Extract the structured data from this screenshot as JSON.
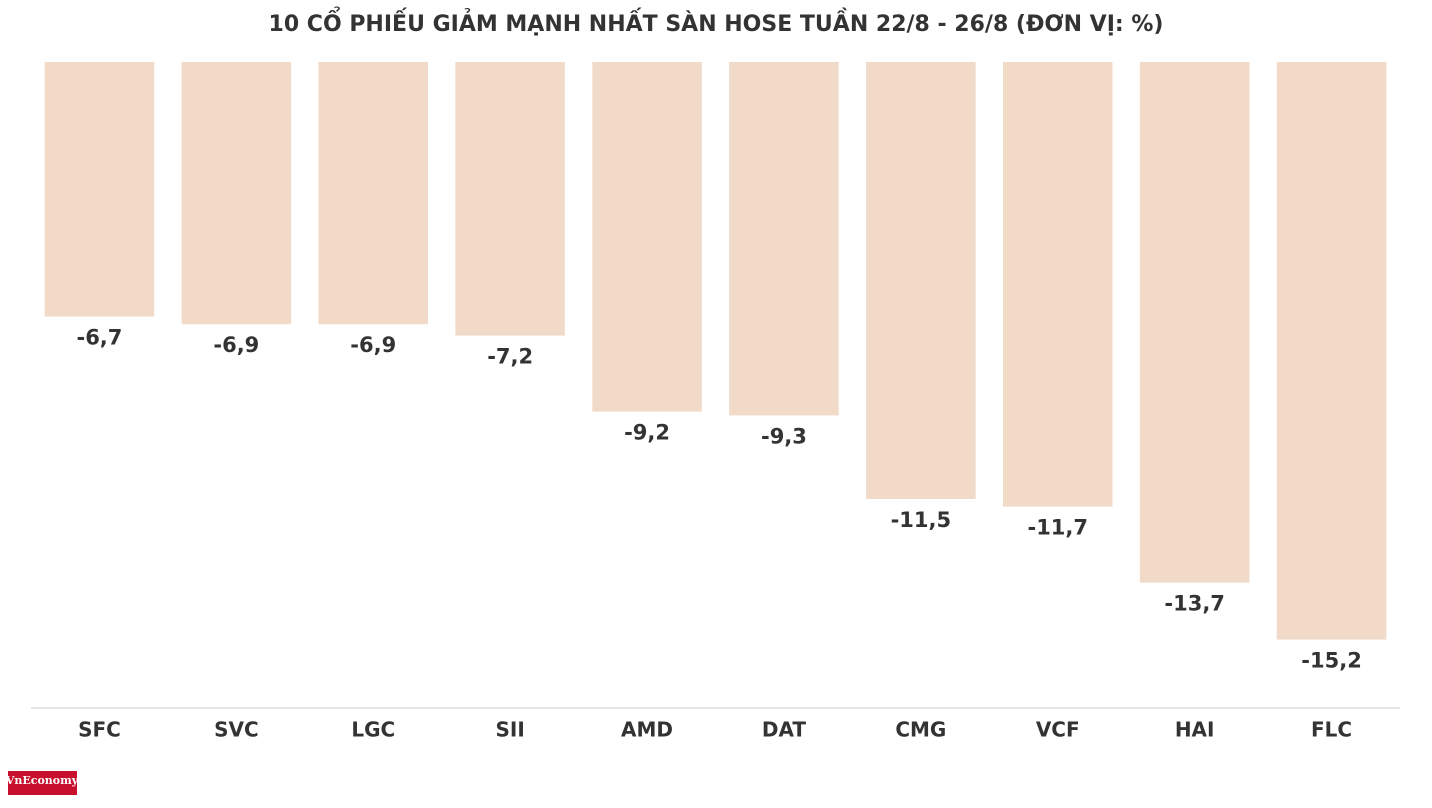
{
  "chart_data": {
    "type": "bar",
    "title": "10 CỔ PHIẾU GIẢM MẠNH NHẤT SÀN HOSE TUẦN 22/8 - 26/8 (ĐƠN VỊ: %)",
    "categories": [
      "SFC",
      "SVC",
      "LGC",
      "SII",
      "AMD",
      "DAT",
      "CMG",
      "VCF",
      "HAI",
      "FLC"
    ],
    "values": [
      -6.7,
      -6.9,
      -6.9,
      -7.2,
      -9.2,
      -9.3,
      -11.5,
      -11.7,
      -13.7,
      -15.2
    ],
    "value_labels": [
      "-6,7",
      "-6,9",
      "-6,9",
      "-7,2",
      "-9,2",
      "-9,3",
      "-11,5",
      "-11,7",
      "-13,7",
      "-15,2"
    ],
    "color": "#f2dac9",
    "ylim": [
      -17,
      0
    ]
  },
  "logo": "VnEconomy"
}
